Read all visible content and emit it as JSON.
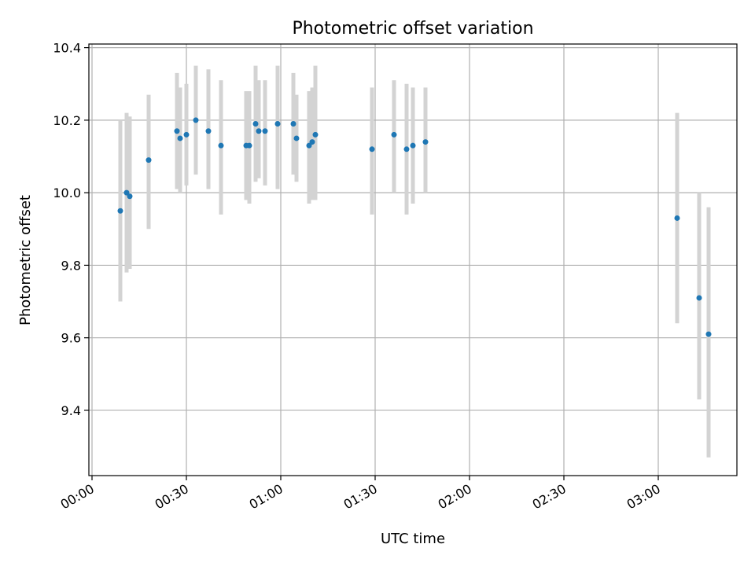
{
  "chart_data": {
    "type": "scatter",
    "title": "Photometric offset variation",
    "xlabel": "UTC time",
    "ylabel": "Photometric offset",
    "xlim": [
      "-00:01",
      "03:25"
    ],
    "ylim": [
      9.22,
      10.41
    ],
    "grid": true,
    "x_ticks": [
      "00:00",
      "00:30",
      "01:00",
      "01:30",
      "02:00",
      "02:30",
      "03:00"
    ],
    "y_ticks": [
      9.4,
      9.6,
      9.8,
      10.0,
      10.2,
      10.4
    ],
    "y_tick_labels": [
      "9.4",
      "9.6",
      "9.8",
      "10.0",
      "10.2",
      "10.4"
    ],
    "errorbar_color": "#d3d3d3",
    "point_color": "#1f77b4",
    "points": [
      {
        "x": "00:09",
        "y": 9.95,
        "ylow": 9.7,
        "yhigh": 10.2
      },
      {
        "x": "00:11",
        "y": 10.0,
        "ylow": 9.78,
        "yhigh": 10.22
      },
      {
        "x": "00:12",
        "y": 9.99,
        "ylow": 9.79,
        "yhigh": 10.21
      },
      {
        "x": "00:18",
        "y": 10.09,
        "ylow": 9.9,
        "yhigh": 10.27
      },
      {
        "x": "00:27",
        "y": 10.17,
        "ylow": 10.01,
        "yhigh": 10.33
      },
      {
        "x": "00:28",
        "y": 10.15,
        "ylow": 10.0,
        "yhigh": 10.29
      },
      {
        "x": "00:30",
        "y": 10.16,
        "ylow": 10.02,
        "yhigh": 10.3
      },
      {
        "x": "00:33",
        "y": 10.2,
        "ylow": 10.05,
        "yhigh": 10.35
      },
      {
        "x": "00:37",
        "y": 10.17,
        "ylow": 10.01,
        "yhigh": 10.34
      },
      {
        "x": "00:41",
        "y": 10.13,
        "ylow": 9.94,
        "yhigh": 10.31
      },
      {
        "x": "00:49",
        "y": 10.13,
        "ylow": 9.98,
        "yhigh": 10.28
      },
      {
        "x": "00:50",
        "y": 10.13,
        "ylow": 9.97,
        "yhigh": 10.28
      },
      {
        "x": "00:52",
        "y": 10.19,
        "ylow": 10.03,
        "yhigh": 10.35
      },
      {
        "x": "00:53",
        "y": 10.17,
        "ylow": 10.04,
        "yhigh": 10.31
      },
      {
        "x": "00:55",
        "y": 10.17,
        "ylow": 10.02,
        "yhigh": 10.31
      },
      {
        "x": "00:59",
        "y": 10.19,
        "ylow": 10.01,
        "yhigh": 10.35
      },
      {
        "x": "01:04",
        "y": 10.19,
        "ylow": 10.05,
        "yhigh": 10.33
      },
      {
        "x": "01:05",
        "y": 10.15,
        "ylow": 10.03,
        "yhigh": 10.27
      },
      {
        "x": "01:09",
        "y": 10.13,
        "ylow": 9.97,
        "yhigh": 10.28
      },
      {
        "x": "01:10",
        "y": 10.14,
        "ylow": 9.98,
        "yhigh": 10.29
      },
      {
        "x": "01:11",
        "y": 10.16,
        "ylow": 9.98,
        "yhigh": 10.35
      },
      {
        "x": "01:29",
        "y": 10.12,
        "ylow": 9.94,
        "yhigh": 10.29
      },
      {
        "x": "01:36",
        "y": 10.16,
        "ylow": 10.0,
        "yhigh": 10.31
      },
      {
        "x": "01:40",
        "y": 10.12,
        "ylow": 9.94,
        "yhigh": 10.3
      },
      {
        "x": "01:42",
        "y": 10.13,
        "ylow": 9.97,
        "yhigh": 10.29
      },
      {
        "x": "01:46",
        "y": 10.14,
        "ylow": 10.0,
        "yhigh": 10.29
      },
      {
        "x": "03:06",
        "y": 9.93,
        "ylow": 9.64,
        "yhigh": 10.22
      },
      {
        "x": "03:13",
        "y": 9.71,
        "ylow": 9.43,
        "yhigh": 10.0
      },
      {
        "x": "03:16",
        "y": 9.61,
        "ylow": 9.27,
        "yhigh": 9.96
      }
    ]
  }
}
